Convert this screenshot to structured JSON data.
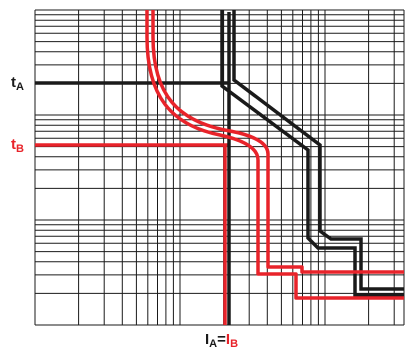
{
  "labels": {
    "t_a": {
      "main": "t",
      "sub": "A"
    },
    "t_b": {
      "main": "t",
      "sub": "B"
    },
    "current": {
      "a_main": "I",
      "a_sub": "A",
      "eq": "=",
      "b_main": "I",
      "b_sub": "B"
    }
  },
  "colors": {
    "curve_a": "#1a1a1a",
    "curve_b": "#e8232a",
    "grid": "#1a1a1a",
    "background": "#ffffff"
  },
  "chart_data": {
    "type": "line",
    "title": "",
    "xlabel": "",
    "ylabel": "",
    "x_scale": "log",
    "y_scale": "log",
    "grid": true,
    "series": [
      {
        "name": "A",
        "color": "#1a1a1a",
        "style": "double-line band"
      },
      {
        "name": "B",
        "color": "#e8232a",
        "style": "double-line band"
      }
    ],
    "annotations": [
      "tA",
      "tB",
      "IA=IB"
    ]
  }
}
